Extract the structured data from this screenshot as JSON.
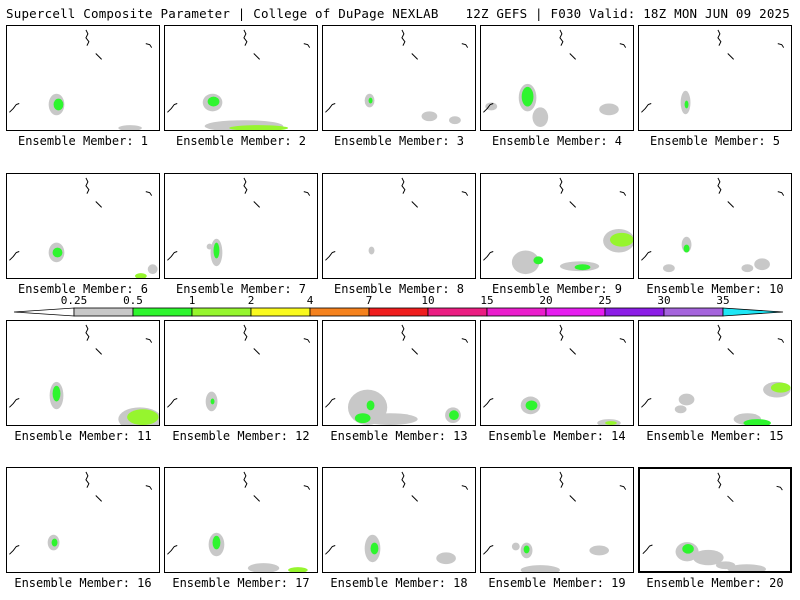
{
  "header": {
    "left_title": "Supercell Composite Parameter | College of DuPage NEXLAB",
    "right_title": "12Z GEFS | F030 Valid: 18Z MON JUN 09 2025"
  },
  "colors": {
    "shade_0_25": "#c8c8c8",
    "shade_0_5": "#2ef52e",
    "shade_1": "#96f52e",
    "shade_2": "#fafa1e",
    "shade_4": "#f5821e",
    "shade_7": "#f01e1e",
    "shade_10": "#eb1e82",
    "shade_15": "#eb1ecd",
    "shade_20": "#e61ef0",
    "shade_25": "#8c1ee6",
    "shade_30": "#a564dc",
    "shade_35": "#1ee6f5"
  },
  "scale": {
    "ticks": [
      "0.25",
      "0.5",
      "1",
      "2",
      "4",
      "7",
      "10",
      "15",
      "20",
      "25",
      "30",
      "35"
    ]
  },
  "members": [
    {
      "label": "Ensemble Member: 1",
      "selected": false
    },
    {
      "label": "Ensemble Member: 2",
      "selected": false
    },
    {
      "label": "Ensemble Member: 3",
      "selected": false
    },
    {
      "label": "Ensemble Member: 4",
      "selected": false
    },
    {
      "label": "Ensemble Member: 5",
      "selected": false
    },
    {
      "label": "Ensemble Member: 6",
      "selected": false
    },
    {
      "label": "Ensemble Member: 7",
      "selected": false
    },
    {
      "label": "Ensemble Member: 8",
      "selected": false
    },
    {
      "label": "Ensemble Member: 9",
      "selected": false
    },
    {
      "label": "Ensemble Member: 10",
      "selected": false
    },
    {
      "label": "Ensemble Member: 11",
      "selected": false
    },
    {
      "label": "Ensemble Member: 12",
      "selected": false
    },
    {
      "label": "Ensemble Member: 13",
      "selected": false
    },
    {
      "label": "Ensemble Member: 14",
      "selected": false
    },
    {
      "label": "Ensemble Member: 15",
      "selected": false
    },
    {
      "label": "Ensemble Member: 16",
      "selected": false
    },
    {
      "label": "Ensemble Member: 17",
      "selected": false
    },
    {
      "label": "Ensemble Member: 18",
      "selected": false
    },
    {
      "label": "Ensemble Member: 19",
      "selected": false
    },
    {
      "label": "Ensemble Member: 20",
      "selected": true
    }
  ]
}
